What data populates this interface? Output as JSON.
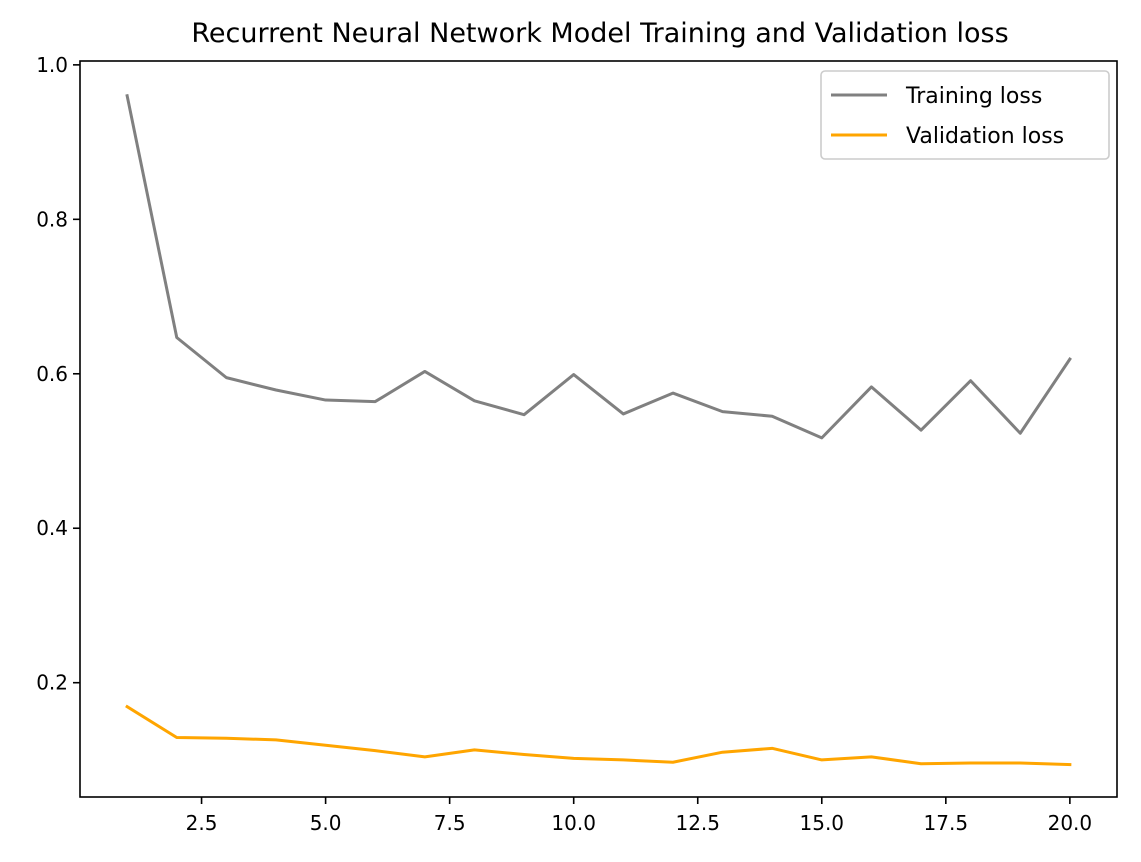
{
  "chart_data": {
    "type": "line",
    "title": "Recurrent Neural Network Model Training and Validation loss",
    "xlabel": "",
    "ylabel": "",
    "xlim": [
      0.05,
      20.95
    ],
    "ylim": [
      0.052,
      1.005
    ],
    "xticks": [
      2.5,
      5.0,
      7.5,
      10.0,
      12.5,
      15.0,
      17.5,
      20.0
    ],
    "xtick_labels": [
      "2.5",
      "5.0",
      "7.5",
      "10.0",
      "12.5",
      "15.0",
      "17.5",
      "20.0"
    ],
    "yticks": [
      0.2,
      0.4,
      0.6,
      0.8,
      1.0
    ],
    "ytick_labels": [
      "0.2",
      "0.4",
      "0.6",
      "0.8",
      "1.0"
    ],
    "grid": false,
    "legend_position": "top-right",
    "x": [
      1,
      2,
      3,
      4,
      5,
      6,
      7,
      8,
      9,
      10,
      11,
      12,
      13,
      14,
      15,
      16,
      17,
      18,
      19,
      20
    ],
    "series": [
      {
        "name": "Training loss",
        "color": "#808080",
        "values": [
          0.96,
          0.647,
          0.595,
          0.579,
          0.566,
          0.564,
          0.603,
          0.565,
          0.547,
          0.599,
          0.548,
          0.575,
          0.551,
          0.545,
          0.517,
          0.583,
          0.527,
          0.591,
          0.523,
          0.619
        ]
      },
      {
        "name": "Validation loss",
        "color": "#ffa500",
        "values": [
          0.169,
          0.129,
          0.128,
          0.126,
          0.119,
          0.112,
          0.104,
          0.113,
          0.107,
          0.102,
          0.1,
          0.097,
          0.11,
          0.115,
          0.1,
          0.104,
          0.095,
          0.096,
          0.096,
          0.094
        ]
      }
    ]
  }
}
